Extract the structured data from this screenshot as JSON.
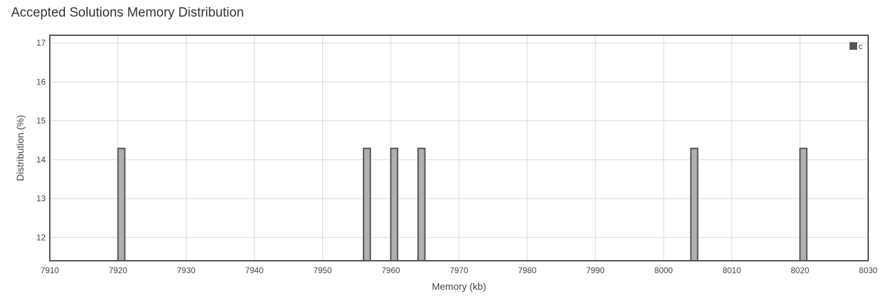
{
  "chart_data": {
    "type": "bar",
    "title": "Accepted Solutions Memory Distribution",
    "xlabel": "Memory (kb)",
    "ylabel": "Distribution (%)",
    "xlim": [
      7910,
      8030
    ],
    "ylim": [
      11.4,
      17.2
    ],
    "xticks": [
      7910,
      7920,
      7930,
      7940,
      7950,
      7960,
      7970,
      7980,
      7990,
      8000,
      8010,
      8020,
      8030
    ],
    "yticks": [
      12,
      13,
      14,
      15,
      16,
      17
    ],
    "grid": true,
    "legend_position": "top-right",
    "series": [
      {
        "name": "c",
        "x": [
          7920.5,
          7956.5,
          7960.5,
          7964.5,
          8004.5,
          8020.5
        ],
        "values": [
          14.29,
          14.29,
          14.29,
          14.29,
          14.29,
          14.29
        ]
      }
    ],
    "colors": {
      "bar_fill": "#b0b0b0",
      "bar_stroke": "#555555",
      "legend_swatch": "#555555",
      "grid": "#d9d9d9",
      "frame": "#555555"
    }
  }
}
